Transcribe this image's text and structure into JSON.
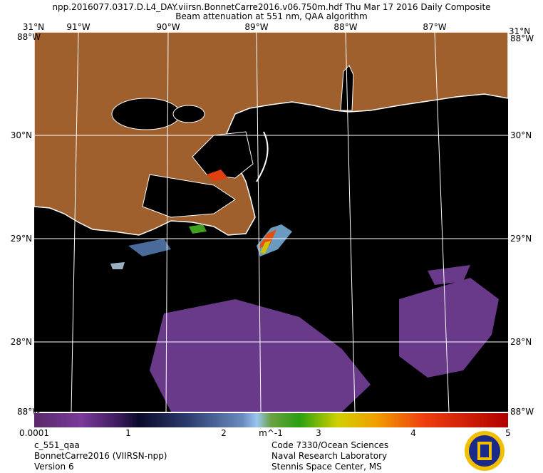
{
  "header": {
    "title": "npp.2016077.0317.D.L4_DAY.viirsn.BonnetCarre2016.v06.750m.hdf    Thu Mar 17 2016 Daily Composite",
    "subtitle": "Beam attenuation at 551 nm, QAA algorithm"
  },
  "map": {
    "lon_labels": [
      "91°W",
      "90°W",
      "89°W",
      "88°W",
      "87°W"
    ],
    "lat_labels": [
      "30°N",
      "29°N",
      "28°N"
    ],
    "corner_labels": [
      "31°N",
      "88°W"
    ]
  },
  "colorbar": {
    "labels": [
      "0.0001",
      "1",
      "2",
      "3",
      "4",
      "5"
    ],
    "unit": "m^-1"
  },
  "footer": {
    "left": [
      "c_551_qaa",
      "BonnetCarre2016 (VIIRSN-npp)",
      "Version 6"
    ],
    "right": [
      "Code 7330/Ocean Sciences",
      "Naval Research Laboratory",
      "Stennis Space Center, MS"
    ]
  }
}
